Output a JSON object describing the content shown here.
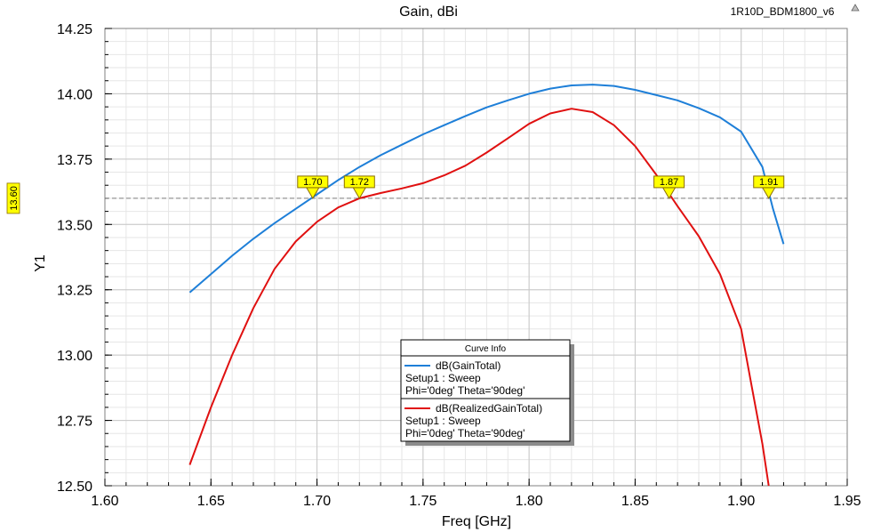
{
  "project_name": "1R10D_BDM1800_v6",
  "colors": {
    "series_blue": "#1e7fd8",
    "series_red": "#e01010",
    "marker_fill": "#ffff00",
    "marker_stroke": "#8a6d00",
    "grid_major": "#c8c8c8",
    "grid_minor": "#e6e6e6",
    "ref_line": "#808080"
  },
  "chart_data": {
    "type": "line",
    "title": "Gain, dBi",
    "xlabel": "Freq [GHz]",
    "ylabel": "Y1",
    "xlim": [
      1.6,
      1.95
    ],
    "ylim": [
      12.5,
      14.25
    ],
    "x_ticks": [
      "1.60",
      "1.65",
      "1.70",
      "1.75",
      "1.80",
      "1.85",
      "1.90",
      "1.95"
    ],
    "y_ticks": [
      "12.50",
      "12.75",
      "13.00",
      "13.25",
      "13.50",
      "13.75",
      "14.00",
      "14.25"
    ],
    "grid": true,
    "reference_line": {
      "y": 13.6,
      "label": "13.60"
    },
    "series": [
      {
        "name": "dB(GainTotal)",
        "x": [
          1.64,
          1.65,
          1.66,
          1.67,
          1.68,
          1.69,
          1.7,
          1.71,
          1.72,
          1.73,
          1.74,
          1.75,
          1.76,
          1.77,
          1.78,
          1.79,
          1.8,
          1.81,
          1.82,
          1.83,
          1.84,
          1.85,
          1.86,
          1.87,
          1.88,
          1.89,
          1.9,
          1.91,
          1.915,
          1.92
        ],
        "values": [
          13.24,
          13.31,
          13.38,
          13.445,
          13.505,
          13.56,
          13.615,
          13.67,
          13.72,
          13.765,
          13.805,
          13.845,
          13.88,
          13.915,
          13.948,
          13.975,
          14.0,
          14.02,
          14.032,
          14.035,
          14.03,
          14.015,
          13.995,
          13.975,
          13.945,
          13.91,
          13.855,
          13.72,
          13.56,
          13.425
        ]
      },
      {
        "name": "dB(RealizedGainTotal)",
        "x": [
          1.64,
          1.65,
          1.66,
          1.67,
          1.68,
          1.69,
          1.7,
          1.71,
          1.72,
          1.73,
          1.74,
          1.75,
          1.76,
          1.77,
          1.78,
          1.79,
          1.8,
          1.81,
          1.82,
          1.83,
          1.84,
          1.85,
          1.86,
          1.87,
          1.88,
          1.89,
          1.9,
          1.905,
          1.91,
          1.913
        ],
        "values": [
          12.58,
          12.8,
          13.0,
          13.18,
          13.33,
          13.435,
          13.51,
          13.565,
          13.6,
          13.62,
          13.638,
          13.658,
          13.688,
          13.725,
          13.775,
          13.83,
          13.885,
          13.925,
          13.943,
          13.93,
          13.88,
          13.8,
          13.69,
          13.57,
          13.455,
          13.31,
          13.1,
          12.88,
          12.66,
          12.5
        ]
      }
    ],
    "markers": [
      {
        "label": "1.70",
        "x": 1.698,
        "y": 13.6
      },
      {
        "label": "1.72",
        "x": 1.72,
        "y": 13.6
      },
      {
        "label": "1.87",
        "x": 1.866,
        "y": 13.6
      },
      {
        "label": "1.91",
        "x": 1.913,
        "y": 13.6
      }
    ],
    "legend": {
      "placement": "bottom-center",
      "title": "Curve Info",
      "entries": [
        {
          "name": "dB(GainTotal)",
          "line1": "Setup1 : Sweep",
          "line2": "Phi='0deg' Theta='90deg'"
        },
        {
          "name": "dB(RealizedGainTotal)",
          "line1": "Setup1 : Sweep",
          "line2": "Phi='0deg' Theta='90deg'"
        }
      ]
    }
  }
}
